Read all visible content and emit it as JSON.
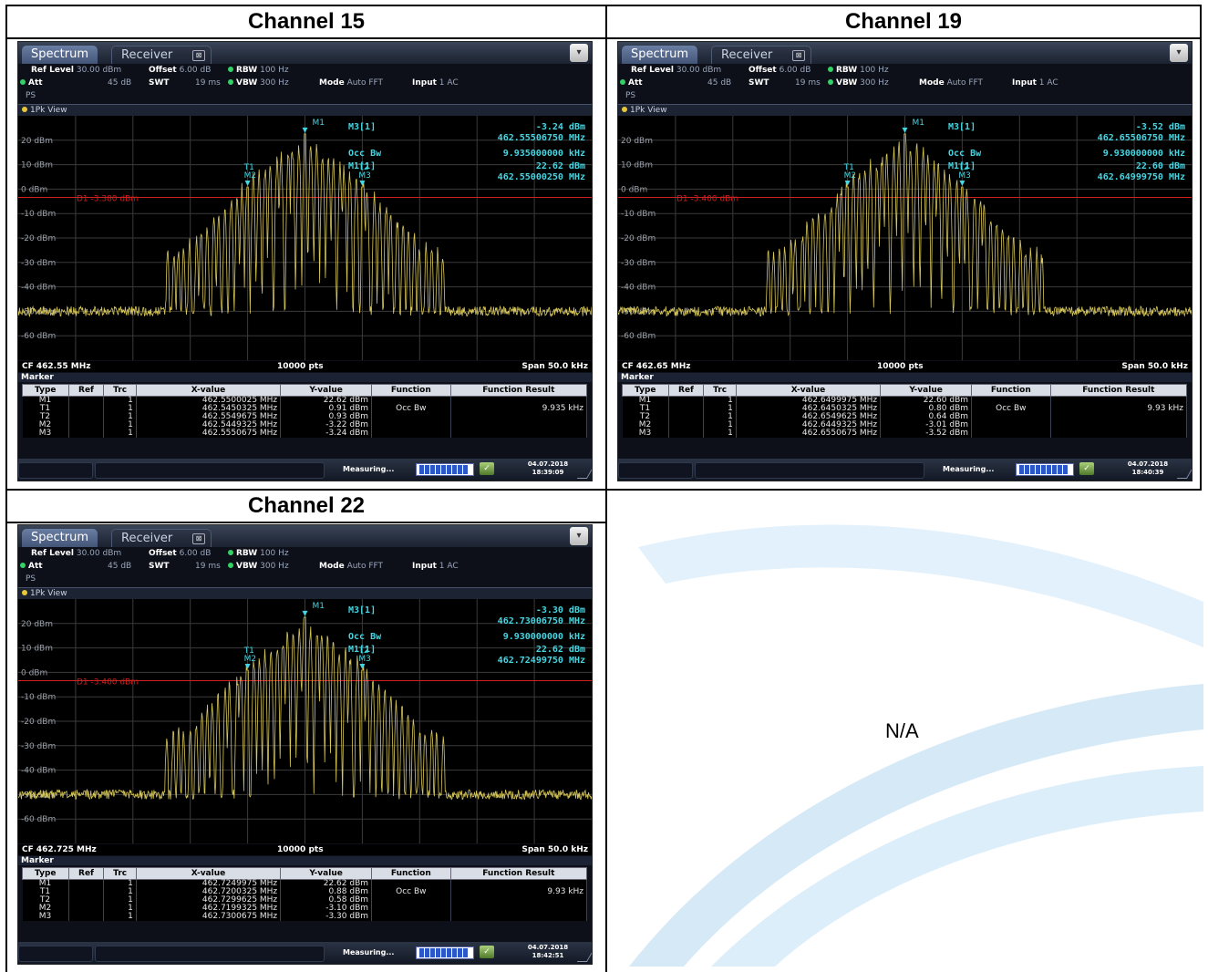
{
  "layout_headers": [
    "Channel 15",
    "Channel 19",
    "Channel 22"
  ],
  "empty_cell_text": "N/A",
  "colors": {
    "trace": "#d7c75a",
    "marker": "#45d6e3",
    "display_line": "#d02020",
    "grid": "#3b3b3b"
  },
  "screens": [
    {
      "tabs": {
        "active": "Spectrum",
        "inactive": "Receiver"
      },
      "settings": {
        "ref_level_label": "Ref Level",
        "ref_level": "30.00 dBm",
        "offset_label": "Offset",
        "offset": "6.00 dB",
        "rbw_label": "RBW",
        "rbw": "100 Hz",
        "att_label": "Att",
        "att": "45 dB",
        "swt_label": "SWT",
        "swt": "19 ms",
        "vbw_label": "VBW",
        "vbw": "300 Hz",
        "mode_label": "Mode",
        "mode": "Auto FFT",
        "input_label": "Input",
        "input": "1 AC",
        "ps": "PS"
      },
      "view_label": "1Pk View",
      "y_ticks": [
        "20 dBm",
        "10 dBm",
        "0 dBm",
        "-10 dBm",
        "-20 dBm",
        "-30 dBm",
        "-40 dBm",
        "-50 dBm",
        "-60 dBm"
      ],
      "display_line": "D1 -3.380 dBm",
      "display_line_dbm": -3.38,
      "marker_readout": {
        "m3_label": "M3[1]",
        "m3_level": "-3.24 dBm",
        "m3_freq": "462.55506750 MHz",
        "occ_label": "Occ Bw",
        "occ_value": "9.935000000 kHz",
        "m1_label": "M1[1]",
        "m1_level": "22.62 dBm",
        "m1_freq": "462.55000250 MHz"
      },
      "cf": "CF 462.55 MHz",
      "pts": "10000 pts",
      "span": "Span 50.0 kHz",
      "marker_title": "Marker",
      "table_headers": [
        "Type",
        "Ref",
        "Trc",
        "X-value",
        "Y-value",
        "Function",
        "Function Result"
      ],
      "rows": [
        [
          "M1",
          "",
          "1",
          "462.5500025 MHz",
          "22.62 dBm",
          "",
          ""
        ],
        [
          "T1",
          "",
          "1",
          "462.5450325 MHz",
          "0.91 dBm",
          "Occ Bw",
          "9.935 kHz"
        ],
        [
          "T2",
          "",
          "1",
          "462.5549675 MHz",
          "0.93 dBm",
          "",
          ""
        ],
        [
          "M2",
          "",
          "1",
          "462.5449325 MHz",
          "-3.22 dBm",
          "",
          ""
        ],
        [
          "M3",
          "",
          "1",
          "462.5550675 MHz",
          "-3.24 dBm",
          "",
          ""
        ]
      ],
      "status": "Measuring...",
      "date": "04.07.2018",
      "time": "18:39:09"
    },
    {
      "tabs": {
        "active": "Spectrum",
        "inactive": "Receiver"
      },
      "settings": {
        "ref_level_label": "Ref Level",
        "ref_level": "30.00 dBm",
        "offset_label": "Offset",
        "offset": "6.00 dB",
        "rbw_label": "RBW",
        "rbw": "100 Hz",
        "att_label": "Att",
        "att": "45 dB",
        "swt_label": "SWT",
        "swt": "19 ms",
        "vbw_label": "VBW",
        "vbw": "300 Hz",
        "mode_label": "Mode",
        "mode": "Auto FFT",
        "input_label": "Input",
        "input": "1 AC",
        "ps": "PS"
      },
      "view_label": "1Pk View",
      "y_ticks": [
        "20 dBm",
        "10 dBm",
        "0 dBm",
        "-10 dBm",
        "-20 dBm",
        "-30 dBm",
        "-40 dBm",
        "-50 dBm",
        "-60 dBm"
      ],
      "display_line": "D1 -3.400 dBm",
      "display_line_dbm": -3.4,
      "marker_readout": {
        "m3_label": "M3[1]",
        "m3_level": "-3.52 dBm",
        "m3_freq": "462.65506750 MHz",
        "occ_label": "Occ Bw",
        "occ_value": "9.930000000 kHz",
        "m1_label": "M1[1]",
        "m1_level": "22.60 dBm",
        "m1_freq": "462.64999750 MHz"
      },
      "cf": "CF 462.65 MHz",
      "pts": "10000 pts",
      "span": "Span 50.0 kHz",
      "marker_title": "Marker",
      "table_headers": [
        "Type",
        "Ref",
        "Trc",
        "X-value",
        "Y-value",
        "Function",
        "Function Result"
      ],
      "rows": [
        [
          "M1",
          "",
          "1",
          "462.6499975 MHz",
          "22.60 dBm",
          "",
          ""
        ],
        [
          "T1",
          "",
          "1",
          "462.6450325 MHz",
          "0.80 dBm",
          "Occ Bw",
          "9.93 kHz"
        ],
        [
          "T2",
          "",
          "1",
          "462.6549625 MHz",
          "0.64 dBm",
          "",
          ""
        ],
        [
          "M2",
          "",
          "1",
          "462.6449325 MHz",
          "-3.01 dBm",
          "",
          ""
        ],
        [
          "M3",
          "",
          "1",
          "462.6550675 MHz",
          "-3.52 dBm",
          "",
          ""
        ]
      ],
      "status": "Measuring...",
      "date": "04.07.2018",
      "time": "18:40:39"
    },
    {
      "tabs": {
        "active": "Spectrum",
        "inactive": "Receiver"
      },
      "settings": {
        "ref_level_label": "Ref Level",
        "ref_level": "30.00 dBm",
        "offset_label": "Offset",
        "offset": "6.00 dB",
        "rbw_label": "RBW",
        "rbw": "100 Hz",
        "att_label": "Att",
        "att": "45 dB",
        "swt_label": "SWT",
        "swt": "19 ms",
        "vbw_label": "VBW",
        "vbw": "300 Hz",
        "mode_label": "Mode",
        "mode": "Auto FFT",
        "input_label": "Input",
        "input": "1 AC",
        "ps": "PS"
      },
      "view_label": "1Pk View",
      "y_ticks": [
        "20 dBm",
        "10 dBm",
        "0 dBm",
        "-10 dBm",
        "-20 dBm",
        "-30 dBm",
        "-40 dBm",
        "-50 dBm",
        "-60 dBm"
      ],
      "display_line": "D1 -3.400 dBm",
      "display_line_dbm": -3.4,
      "marker_readout": {
        "m3_label": "M3[1]",
        "m3_level": "-3.30 dBm",
        "m3_freq": "462.73006750 MHz",
        "occ_label": "Occ Bw",
        "occ_value": "9.930000000 kHz",
        "m1_label": "M1[1]",
        "m1_level": "22.62 dBm",
        "m1_freq": "462.72499750 MHz"
      },
      "cf": "CF 462.725 MHz",
      "pts": "10000 pts",
      "span": "Span 50.0 kHz",
      "marker_title": "Marker",
      "table_headers": [
        "Type",
        "Ref",
        "Trc",
        "X-value",
        "Y-value",
        "Function",
        "Function Result"
      ],
      "rows": [
        [
          "M1",
          "",
          "1",
          "462.7249975 MHz",
          "22.62 dBm",
          "",
          ""
        ],
        [
          "T1",
          "",
          "1",
          "462.7200325 MHz",
          "0.88 dBm",
          "Occ Bw",
          "9.93 kHz"
        ],
        [
          "T2",
          "",
          "1",
          "462.7299625 MHz",
          "0.58 dBm",
          "",
          ""
        ],
        [
          "M2",
          "",
          "1",
          "462.7199325 MHz",
          "-3.10 dBm",
          "",
          ""
        ],
        [
          "M3",
          "",
          "1",
          "462.7300675 MHz",
          "-3.30 dBm",
          "",
          ""
        ]
      ],
      "status": "Measuring...",
      "date": "04.07.2018",
      "time": "18:42:51"
    }
  ],
  "plot_marker_labels": {
    "m1": "M1",
    "t1": "T1",
    "t2": "T2",
    "m2": "M2",
    "m3": "M3"
  }
}
